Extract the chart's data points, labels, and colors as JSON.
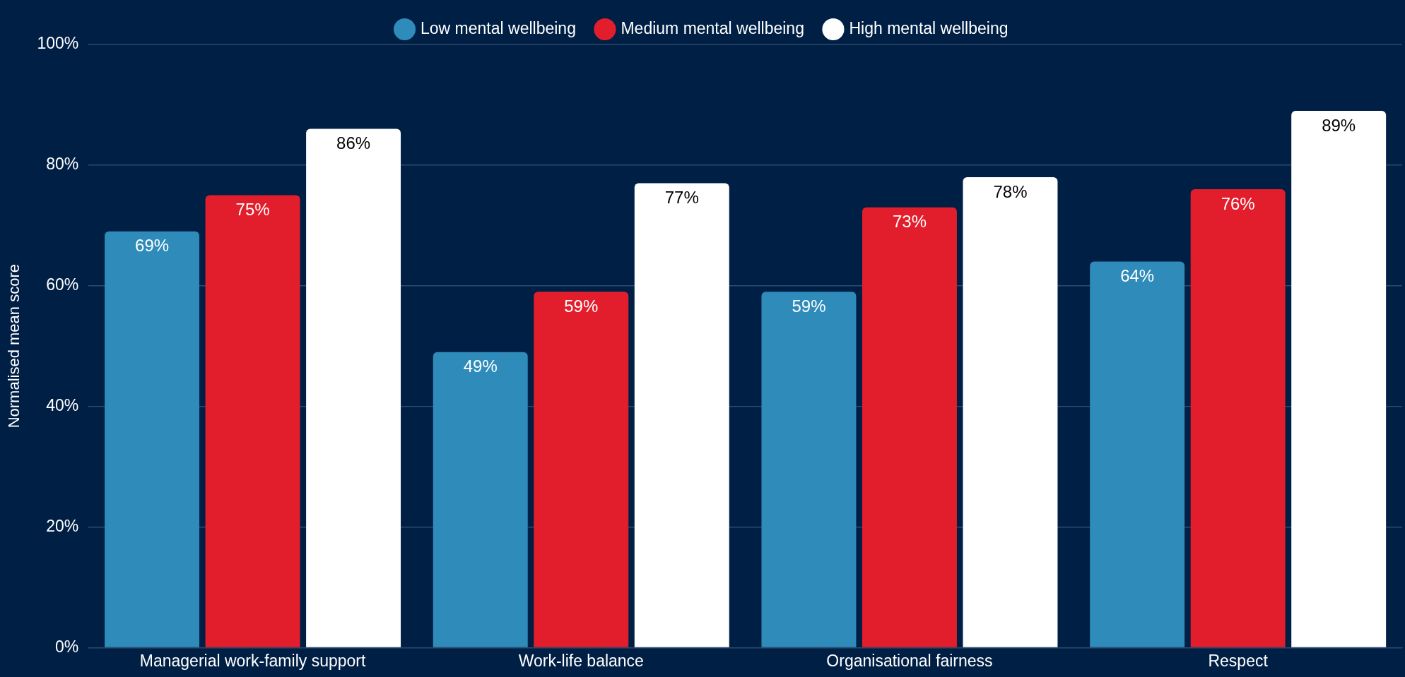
{
  "chart_data": {
    "type": "bar",
    "ylabel": "Normalised mean score",
    "categories": [
      "Managerial work-family support",
      "Work-life balance",
      "Organisational fairness",
      "Respect"
    ],
    "series": [
      {
        "name": "Low mental wellbeing",
        "color": "#2e8bba",
        "values": [
          69,
          49,
          59,
          64
        ],
        "value_labels": [
          "69%",
          "49%",
          "59%",
          "64%"
        ]
      },
      {
        "name": "Medium mental wellbeing",
        "color": "#e31e2c",
        "values": [
          75,
          59,
          73,
          76
        ],
        "value_labels": [
          "75%",
          "59%",
          "73%",
          "76%"
        ]
      },
      {
        "name": "High mental wellbeing",
        "color": "#ffffff",
        "values": [
          86,
          77,
          78,
          89
        ],
        "value_labels": [
          "86%",
          "77%",
          "78%",
          "89%"
        ]
      }
    ],
    "ylim": [
      0,
      100
    ],
    "yticks": [
      {
        "value": 0,
        "label": "0%"
      },
      {
        "value": 20,
        "label": "20%"
      },
      {
        "value": 40,
        "label": "40%"
      },
      {
        "value": 60,
        "label": "60%"
      },
      {
        "value": 80,
        "label": "80%"
      },
      {
        "value": 100,
        "label": "100%"
      }
    ],
    "grid": "y",
    "legend": "top"
  }
}
